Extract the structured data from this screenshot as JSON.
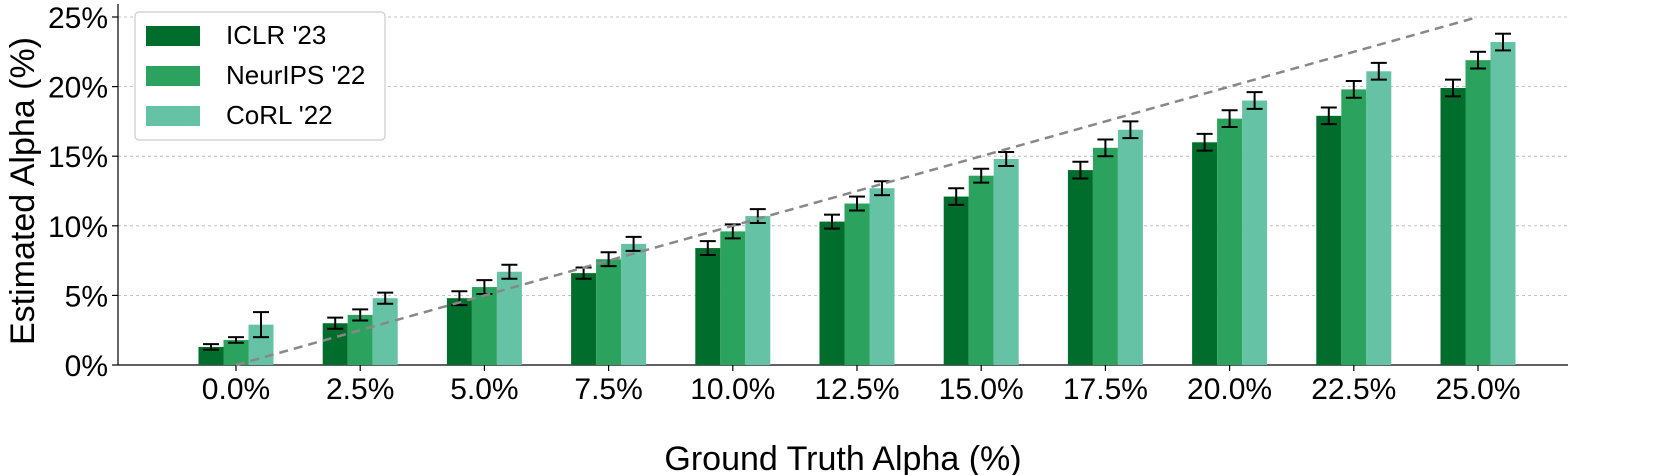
{
  "chart_data": {
    "type": "bar",
    "xlabel": "Ground Truth Alpha (%)",
    "ylabel": "Estimated Alpha (%)",
    "ylim": [
      0,
      25
    ],
    "yticks": [
      0,
      5,
      10,
      15,
      20,
      25
    ],
    "ytick_labels": [
      "0%",
      "5%",
      "10%",
      "15%",
      "20%",
      "25%"
    ],
    "categories": [
      "0.0%",
      "2.5%",
      "5.0%",
      "7.5%",
      "10.0%",
      "12.5%",
      "15.0%",
      "17.5%",
      "20.0%",
      "22.5%",
      "25.0%"
    ],
    "grid": "horizontal dashed",
    "legend_position": "top-left",
    "series": [
      {
        "name": "ICLR '23",
        "color": "#006d2c",
        "values": [
          1.3,
          3.0,
          4.8,
          6.6,
          8.4,
          10.3,
          12.1,
          14.0,
          16.0,
          17.9,
          19.9
        ],
        "errors": [
          0.2,
          0.4,
          0.5,
          0.4,
          0.5,
          0.5,
          0.6,
          0.6,
          0.6,
          0.6,
          0.6
        ]
      },
      {
        "name": "NeurIPS '22",
        "color": "#2ca25f",
        "values": [
          1.8,
          3.6,
          5.6,
          7.6,
          9.6,
          11.6,
          13.6,
          15.6,
          17.7,
          19.8,
          21.9
        ],
        "errors": [
          0.2,
          0.4,
          0.5,
          0.5,
          0.5,
          0.5,
          0.5,
          0.6,
          0.6,
          0.6,
          0.6
        ]
      },
      {
        "name": "CoRL '22",
        "color": "#66c2a4",
        "values": [
          2.9,
          4.8,
          6.7,
          8.7,
          10.7,
          12.7,
          14.8,
          16.9,
          19.0,
          21.1,
          23.2
        ],
        "errors": [
          0.9,
          0.4,
          0.5,
          0.5,
          0.5,
          0.5,
          0.5,
          0.6,
          0.6,
          0.6,
          0.6
        ]
      }
    ],
    "reference_line": {
      "style": "dashed",
      "color": "#888888",
      "x": [
        0,
        25
      ],
      "y": [
        0,
        25
      ]
    }
  }
}
